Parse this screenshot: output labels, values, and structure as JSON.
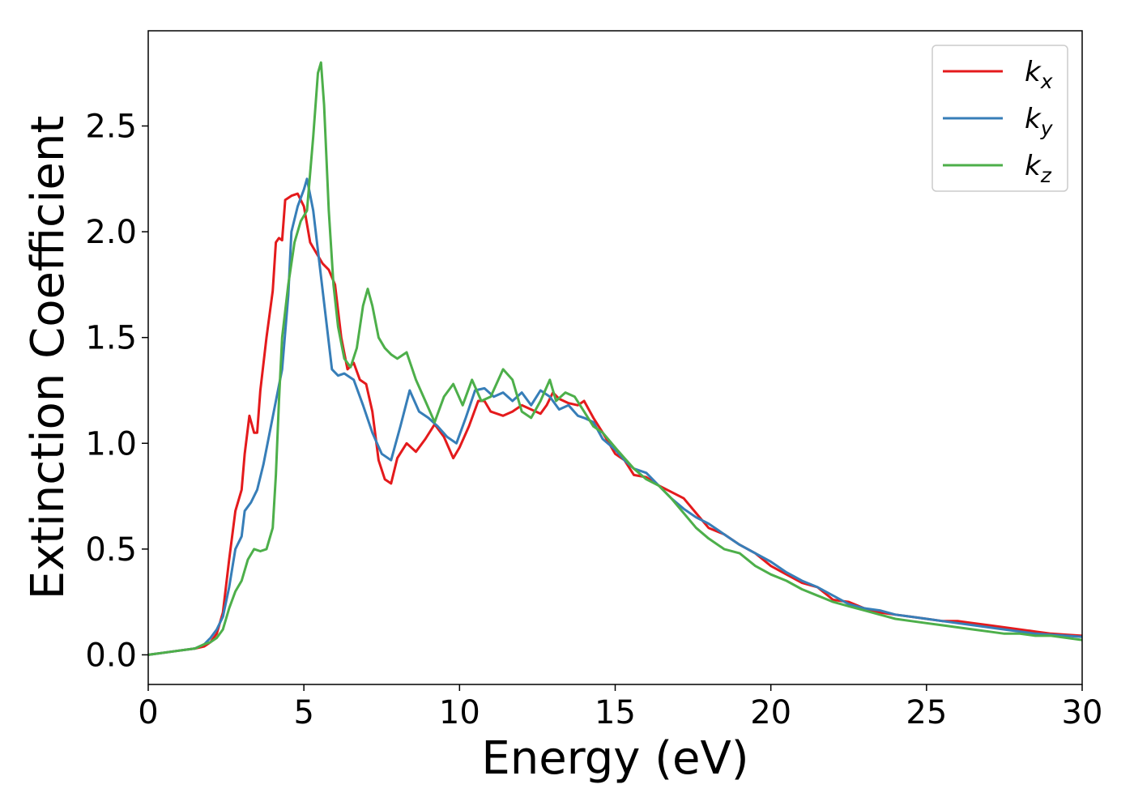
{
  "chart_data": {
    "type": "line",
    "title": "",
    "xlabel": "Energy (eV)",
    "ylabel": "Extinction Coefficient",
    "xlim": [
      0,
      30
    ],
    "ylim": [
      -0.14,
      2.95
    ],
    "xticks": [
      0,
      5,
      10,
      15,
      20,
      25,
      30
    ],
    "yticks": [
      0.0,
      0.5,
      1.0,
      1.5,
      2.0,
      2.5
    ],
    "xtick_labels": [
      "0",
      "5",
      "10",
      "15",
      "20",
      "25",
      "30"
    ],
    "ytick_labels": [
      "0.0",
      "0.5",
      "1.0",
      "1.5",
      "2.0",
      "2.5"
    ],
    "grid": false,
    "legend_position": "top-right",
    "series": [
      {
        "name": "k",
        "subscript": "x",
        "color": "#e41a1c",
        "x": [
          0,
          0.5,
          1,
          1.5,
          1.8,
          2.0,
          2.2,
          2.4,
          2.6,
          2.8,
          3.0,
          3.1,
          3.25,
          3.4,
          3.5,
          3.6,
          3.8,
          4.0,
          4.1,
          4.2,
          4.3,
          4.4,
          4.6,
          4.8,
          5.0,
          5.2,
          5.4,
          5.6,
          5.8,
          6.0,
          6.2,
          6.4,
          6.6,
          6.8,
          7.0,
          7.2,
          7.4,
          7.6,
          7.8,
          8.0,
          8.3,
          8.6,
          8.9,
          9.2,
          9.5,
          9.8,
          10.0,
          10.3,
          10.6,
          10.8,
          11.0,
          11.4,
          11.7,
          12.0,
          12.3,
          12.6,
          12.8,
          13.0,
          13.2,
          13.5,
          13.8,
          14.0,
          14.3,
          14.6,
          15.0,
          15.3,
          15.6,
          16.0,
          16.4,
          16.8,
          17.2,
          17.6,
          18.0,
          18.5,
          19.0,
          19.5,
          20.0,
          20.5,
          21.0,
          21.5,
          22.0,
          22.5,
          23.0,
          23.5,
          24.0,
          24.5,
          25.0,
          25.5,
          26.0,
          26.5,
          27.0,
          27.5,
          28.0,
          28.5,
          29.0,
          29.5,
          30.0
        ],
        "y": [
          0,
          0.01,
          0.02,
          0.03,
          0.04,
          0.06,
          0.1,
          0.2,
          0.45,
          0.68,
          0.78,
          0.95,
          1.13,
          1.05,
          1.05,
          1.25,
          1.5,
          1.72,
          1.95,
          1.97,
          1.96,
          2.15,
          2.17,
          2.18,
          2.12,
          1.95,
          1.9,
          1.85,
          1.82,
          1.75,
          1.5,
          1.35,
          1.38,
          1.3,
          1.28,
          1.15,
          0.92,
          0.83,
          0.81,
          0.93,
          1.0,
          0.96,
          1.02,
          1.09,
          1.03,
          0.93,
          0.98,
          1.08,
          1.2,
          1.2,
          1.15,
          1.13,
          1.15,
          1.18,
          1.16,
          1.14,
          1.18,
          1.24,
          1.21,
          1.19,
          1.18,
          1.2,
          1.12,
          1.05,
          0.95,
          0.92,
          0.85,
          0.84,
          0.8,
          0.77,
          0.74,
          0.67,
          0.6,
          0.57,
          0.52,
          0.48,
          0.42,
          0.38,
          0.34,
          0.32,
          0.26,
          0.25,
          0.22,
          0.2,
          0.19,
          0.18,
          0.17,
          0.16,
          0.16,
          0.15,
          0.14,
          0.13,
          0.12,
          0.11,
          0.1,
          0.095,
          0.09
        ]
      },
      {
        "name": "k",
        "subscript": "y",
        "color": "#377eb8",
        "x": [
          0,
          0.5,
          1,
          1.5,
          1.8,
          2.0,
          2.2,
          2.4,
          2.6,
          2.8,
          3.0,
          3.1,
          3.3,
          3.5,
          3.7,
          3.9,
          4.1,
          4.3,
          4.5,
          4.6,
          4.8,
          5.0,
          5.1,
          5.3,
          5.5,
          5.7,
          5.9,
          6.1,
          6.3,
          6.6,
          6.9,
          7.2,
          7.5,
          7.8,
          8.1,
          8.4,
          8.7,
          9.0,
          9.3,
          9.6,
          9.9,
          10.2,
          10.5,
          10.8,
          11.1,
          11.4,
          11.7,
          12.0,
          12.3,
          12.6,
          12.9,
          13.2,
          13.5,
          13.8,
          14.0,
          14.3,
          14.6,
          15.0,
          15.3,
          15.6,
          16.0,
          16.4,
          16.8,
          17.2,
          17.6,
          18.0,
          18.5,
          19.0,
          19.5,
          20.0,
          20.5,
          21.0,
          21.5,
          22.0,
          22.5,
          23.0,
          23.5,
          24.0,
          24.5,
          25.0,
          25.5,
          26.0,
          26.5,
          27.0,
          27.5,
          28.0,
          28.5,
          29.0,
          29.5,
          30.0
        ],
        "y": [
          0,
          0.01,
          0.02,
          0.03,
          0.05,
          0.08,
          0.12,
          0.18,
          0.32,
          0.5,
          0.56,
          0.68,
          0.72,
          0.78,
          0.9,
          1.05,
          1.2,
          1.35,
          1.7,
          2.0,
          2.12,
          2.2,
          2.25,
          2.1,
          1.85,
          1.6,
          1.35,
          1.32,
          1.33,
          1.3,
          1.18,
          1.05,
          0.95,
          0.92,
          1.08,
          1.25,
          1.15,
          1.12,
          1.08,
          1.03,
          1.0,
          1.12,
          1.25,
          1.26,
          1.22,
          1.24,
          1.2,
          1.24,
          1.18,
          1.25,
          1.22,
          1.16,
          1.18,
          1.13,
          1.12,
          1.1,
          1.02,
          0.97,
          0.92,
          0.88,
          0.86,
          0.8,
          0.74,
          0.69,
          0.65,
          0.62,
          0.57,
          0.52,
          0.48,
          0.44,
          0.39,
          0.35,
          0.32,
          0.28,
          0.24,
          0.22,
          0.21,
          0.19,
          0.18,
          0.17,
          0.16,
          0.15,
          0.14,
          0.13,
          0.12,
          0.11,
          0.1,
          0.095,
          0.09,
          0.085
        ]
      },
      {
        "name": "k",
        "subscript": "z",
        "color": "#4daf4a",
        "x": [
          0,
          0.5,
          1,
          1.5,
          1.8,
          2.0,
          2.2,
          2.4,
          2.6,
          2.8,
          3.0,
          3.2,
          3.4,
          3.6,
          3.8,
          4.0,
          4.1,
          4.2,
          4.3,
          4.5,
          4.7,
          4.9,
          5.1,
          5.3,
          5.45,
          5.55,
          5.65,
          5.8,
          5.95,
          6.1,
          6.3,
          6.5,
          6.7,
          6.9,
          7.05,
          7.2,
          7.4,
          7.6,
          7.8,
          8.0,
          8.3,
          8.6,
          8.9,
          9.2,
          9.5,
          9.8,
          10.1,
          10.4,
          10.7,
          11.0,
          11.4,
          11.7,
          12.0,
          12.3,
          12.6,
          12.9,
          13.1,
          13.4,
          13.7,
          14.0,
          14.3,
          14.6,
          15.0,
          15.3,
          15.6,
          16.0,
          16.4,
          16.8,
          17.2,
          17.6,
          18.0,
          18.5,
          19.0,
          19.5,
          20.0,
          20.5,
          21.0,
          21.5,
          22.0,
          22.5,
          23.0,
          23.5,
          24.0,
          24.5,
          25.0,
          25.5,
          26.0,
          26.5,
          27.0,
          27.5,
          28.0,
          28.5,
          29.0,
          29.5,
          30.0
        ],
        "y": [
          0,
          0.01,
          0.02,
          0.03,
          0.05,
          0.06,
          0.08,
          0.12,
          0.22,
          0.3,
          0.35,
          0.45,
          0.5,
          0.49,
          0.5,
          0.6,
          0.85,
          1.2,
          1.5,
          1.75,
          1.95,
          2.05,
          2.1,
          2.45,
          2.75,
          2.8,
          2.6,
          2.1,
          1.75,
          1.55,
          1.4,
          1.36,
          1.45,
          1.65,
          1.73,
          1.65,
          1.5,
          1.45,
          1.42,
          1.4,
          1.43,
          1.3,
          1.2,
          1.1,
          1.22,
          1.28,
          1.18,
          1.3,
          1.2,
          1.22,
          1.35,
          1.3,
          1.15,
          1.12,
          1.2,
          1.3,
          1.2,
          1.24,
          1.22,
          1.15,
          1.08,
          1.05,
          0.98,
          0.93,
          0.88,
          0.83,
          0.8,
          0.74,
          0.67,
          0.6,
          0.55,
          0.5,
          0.48,
          0.42,
          0.38,
          0.35,
          0.31,
          0.28,
          0.25,
          0.23,
          0.21,
          0.19,
          0.17,
          0.16,
          0.15,
          0.14,
          0.13,
          0.12,
          0.11,
          0.1,
          0.1,
          0.09,
          0.09,
          0.08,
          0.07
        ]
      }
    ]
  }
}
